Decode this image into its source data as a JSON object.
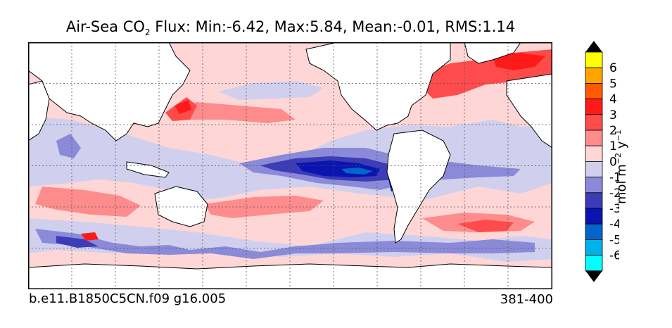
{
  "title": {
    "prefix": "Air-Sea CO",
    "subscript": "2",
    "suffix": " Flux: Min:-6.42, Max:5.84, Mean:-0.01, RMS:1.14"
  },
  "caption_left": "b.e11.B1850C5CN.f09 g16.005",
  "caption_right": "381-400",
  "colorbar": {
    "label_base": "mol m",
    "label_exp1": "−2",
    "label_mid": " y",
    "label_exp2": "−1",
    "levels": [
      {
        "value": -6.5,
        "color": "#00ffff"
      },
      {
        "value": -5.5,
        "color": "#00b3e6"
      },
      {
        "value": -4.5,
        "color": "#0066cc"
      },
      {
        "value": -3.5,
        "color": "#0a14b0"
      },
      {
        "value": -2.5,
        "color": "#3c3cb8"
      },
      {
        "value": -1.5,
        "color": "#8a8ad8"
      },
      {
        "value": -0.5,
        "color": "#d0d0ee"
      },
      {
        "value": 0.5,
        "color": "#ffd6d6"
      },
      {
        "value": 1.5,
        "color": "#ff8c8c"
      },
      {
        "value": 2.5,
        "color": "#ff4b4b"
      },
      {
        "value": 3.5,
        "color": "#ff1a1a"
      },
      {
        "value": 4.5,
        "color": "#ff5a00"
      },
      {
        "value": 5.5,
        "color": "#ffa500"
      },
      {
        "value": 6.5,
        "color": "#ffff00"
      }
    ],
    "ticks": [
      "6",
      "5",
      "4",
      "3",
      "2",
      "1",
      "0",
      "-1",
      "-2",
      "-3",
      "-4",
      "-5",
      "-6"
    ]
  },
  "colors": {
    "land": "#ffffff",
    "ocean_base": "#ffd6d6",
    "grid": "#555555"
  }
}
